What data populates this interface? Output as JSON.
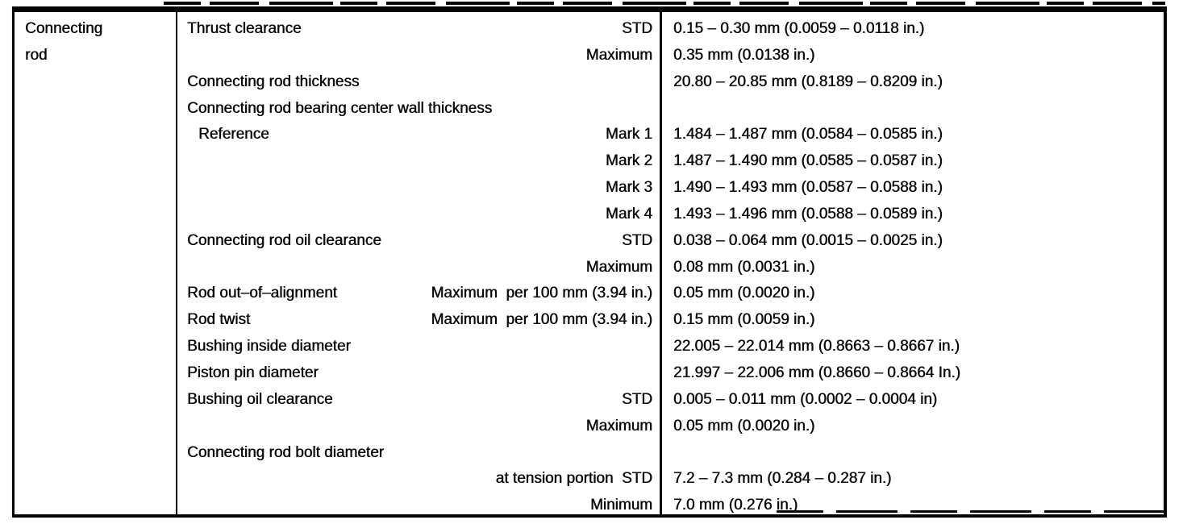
{
  "colors": {
    "ink": "#050505",
    "paper": "#ffffff"
  },
  "table": {
    "component": "Connecting rod",
    "rows": [
      {
        "spec": "Thrust clearance",
        "qualifier": "STD",
        "value": "0.15 – 0.30 mm (0.0059 – 0.0118 in.)",
        "indent": false
      },
      {
        "spec": "",
        "qualifier": "Maximum",
        "value": "0.35 mm (0.0138 in.)",
        "indent": false
      },
      {
        "spec": "Connecting rod thickness",
        "qualifier": "",
        "value": "20.80 – 20.85 mm (0.8189 – 0.8209 in.)",
        "indent": false
      },
      {
        "spec": "Connecting rod bearing center wall thickness",
        "qualifier": "",
        "value": "",
        "indent": false
      },
      {
        "spec": "Reference",
        "qualifier": "Mark 1",
        "value": "1.484 – 1.487 mm (0.0584 – 0.0585 in.)",
        "indent": true
      },
      {
        "spec": "",
        "qualifier": "Mark 2",
        "value": "1.487 – 1.490 mm (0.0585 – 0.0587 in.)",
        "indent": false
      },
      {
        "spec": "",
        "qualifier": "Mark 3",
        "value": "1.490 – 1.493 mm (0.0587 – 0.0588 in.)",
        "indent": false
      },
      {
        "spec": "",
        "qualifier": "Mark 4",
        "value": "1.493 – 1.496 mm (0.0588 – 0.0589 in.)",
        "indent": false
      },
      {
        "spec": "Connecting rod oil clearance",
        "qualifier": "STD",
        "value": "0.038 – 0.064 mm (0.0015 – 0.0025 in.)",
        "indent": false
      },
      {
        "spec": "",
        "qualifier": "Maximum",
        "value": "0.08 mm (0.0031 in.)",
        "indent": false
      },
      {
        "spec": "Rod out–of–alignment",
        "qualifier": "Maximum  per 100 mm (3.94 in.)",
        "value": "0.05 mm (0.0020 in.)",
        "indent": false
      },
      {
        "spec": "Rod twist",
        "qualifier": "Maximum  per 100 mm (3.94 in.)",
        "value": "0.15 mm (0.0059 in.)",
        "indent": false
      },
      {
        "spec": "Bushing inside diameter",
        "qualifier": "",
        "value": "22.005 – 22.014 mm (0.8663 – 0.8667 in.)",
        "indent": false
      },
      {
        "spec": "Piston pin diameter",
        "qualifier": "",
        "value": "21.997 – 22.006 mm (0.8660 – 0.8664 In.)",
        "indent": false
      },
      {
        "spec": "Bushing oil clearance",
        "qualifier": "STD",
        "value": "0.005 – 0.011 mm (0.0002 – 0.0004 in)",
        "indent": false
      },
      {
        "spec": "",
        "qualifier": "Maximum",
        "value": "0.05 mm (0.0020 in.)",
        "indent": false
      },
      {
        "spec": "Connecting rod bolt diameter",
        "qualifier": "",
        "value": "",
        "indent": false
      },
      {
        "spec": "",
        "qualifier": "at tension portion  STD",
        "value": "7.2 – 7.3 mm (0.284 – 0.287 in.)",
        "indent": false
      },
      {
        "spec": "",
        "qualifier": "Minimum",
        "value": "7.0 mm (0.276 in.)",
        "indent": false
      }
    ]
  }
}
